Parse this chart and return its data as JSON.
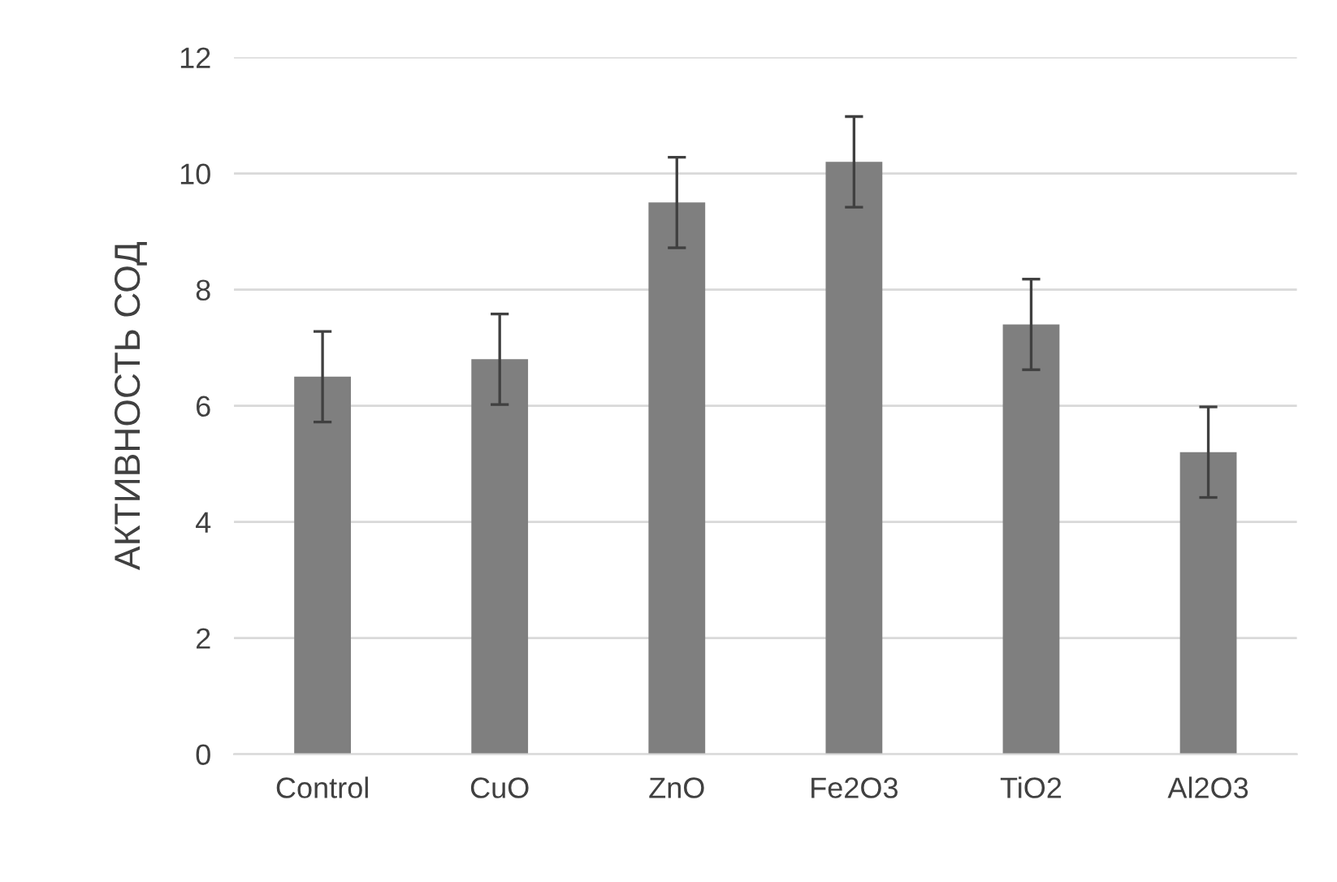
{
  "chart_data": {
    "type": "bar",
    "ylabel": "АКТИВНОСТЬ СОД",
    "categories": [
      "Control",
      "CuO",
      "ZnO",
      "Fe2O3",
      "TiO2",
      "Al2O3"
    ],
    "values": [
      6.5,
      6.8,
      9.5,
      10.2,
      7.4,
      5.2
    ],
    "errors": [
      0.78,
      0.78,
      0.78,
      0.78,
      0.78,
      0.78
    ],
    "color": "#7f7f7f",
    "ylim": [
      0,
      12
    ],
    "yticks": [
      0,
      2,
      4,
      6,
      8,
      10,
      12
    ],
    "grid": "y"
  }
}
